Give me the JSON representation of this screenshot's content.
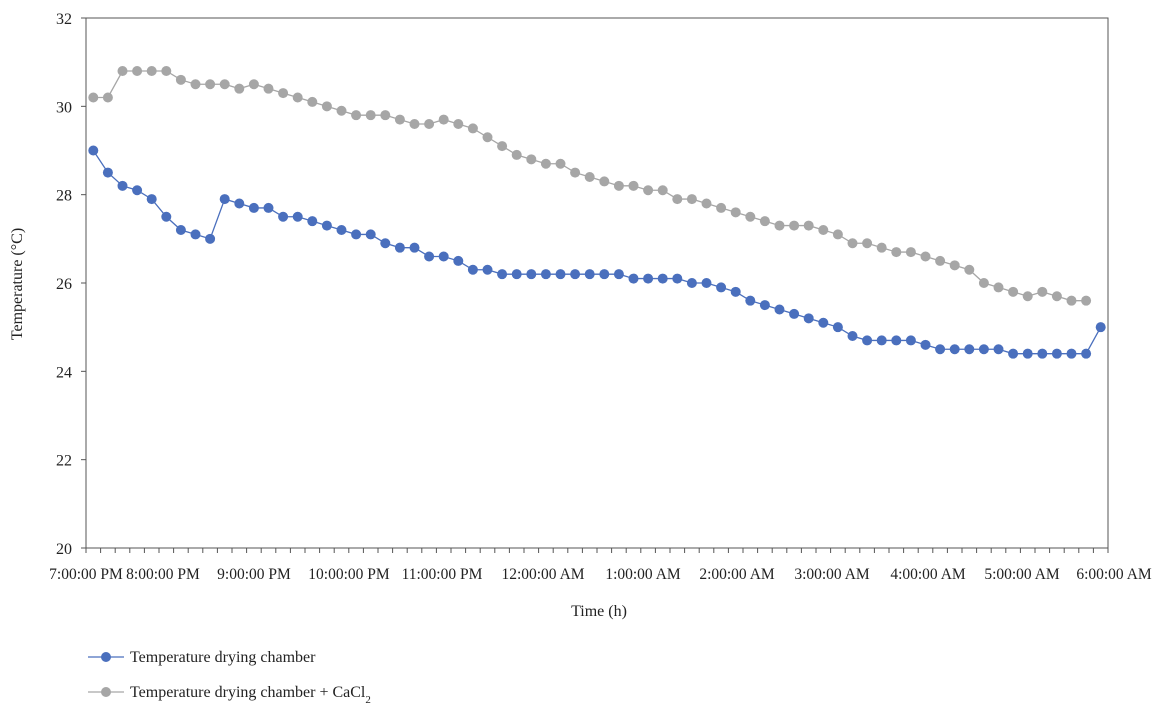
{
  "chart_data": {
    "type": "line",
    "xlabel": "Time (h)",
    "ylabel": "Temperature (°C)",
    "ylim": [
      20,
      32
    ],
    "yticks": [
      20,
      22,
      24,
      26,
      28,
      30,
      32
    ],
    "x_tick_labels": [
      "7:00:00 PM",
      "8:00:00 PM",
      "9:00:00 PM",
      "10:00:00 PM",
      "11:00:00 PM",
      "12:00:00 AM",
      "1:00:00 AM",
      "2:00:00 AM",
      "3:00:00 AM",
      "4:00:00 AM",
      "5:00:00 AM",
      "6:00:00 AM"
    ],
    "grid": false,
    "legend_position": "bottom-left",
    "series": [
      {
        "name": "Temperature drying chamber",
        "color": "#4a6fbd",
        "values": [
          29.0,
          28.5,
          28.2,
          28.1,
          27.9,
          27.5,
          27.2,
          27.1,
          27.0,
          27.9,
          27.8,
          27.7,
          27.7,
          27.5,
          27.5,
          27.4,
          27.3,
          27.2,
          27.1,
          27.1,
          26.9,
          26.8,
          26.8,
          26.6,
          26.6,
          26.5,
          26.3,
          26.3,
          26.2,
          26.2,
          26.2,
          26.2,
          26.2,
          26.2,
          26.2,
          26.2,
          26.2,
          26.1,
          26.1,
          26.1,
          26.1,
          26.0,
          26.0,
          25.9,
          25.8,
          25.6,
          25.5,
          25.4,
          25.3,
          25.2,
          25.1,
          25.0,
          24.8,
          24.7,
          24.7,
          24.7,
          24.7,
          24.6,
          24.5,
          24.5,
          24.5,
          24.5,
          24.5,
          24.4,
          24.4,
          24.4,
          24.4,
          24.4,
          24.4,
          25.0
        ]
      },
      {
        "name": "Temperature drying chamber + CaCl₂",
        "name_prefix": "Temperature drying chamber + CaCl",
        "name_subscript": "2",
        "color": "#a6a6a6",
        "values": [
          30.2,
          30.2,
          30.8,
          30.8,
          30.8,
          30.8,
          30.6,
          30.5,
          30.5,
          30.5,
          30.4,
          30.5,
          30.4,
          30.3,
          30.2,
          30.1,
          30.0,
          29.9,
          29.8,
          29.8,
          29.8,
          29.7,
          29.6,
          29.6,
          29.7,
          29.6,
          29.5,
          29.3,
          29.1,
          28.9,
          28.8,
          28.7,
          28.7,
          28.5,
          28.4,
          28.3,
          28.2,
          28.2,
          28.1,
          28.1,
          27.9,
          27.9,
          27.8,
          27.7,
          27.6,
          27.5,
          27.4,
          27.3,
          27.3,
          27.3,
          27.2,
          27.1,
          26.9,
          26.9,
          26.8,
          26.7,
          26.7,
          26.6,
          26.5,
          26.4,
          26.3,
          26.0,
          25.9,
          25.8,
          25.7,
          25.8,
          25.7,
          25.6,
          25.6
        ]
      }
    ]
  }
}
